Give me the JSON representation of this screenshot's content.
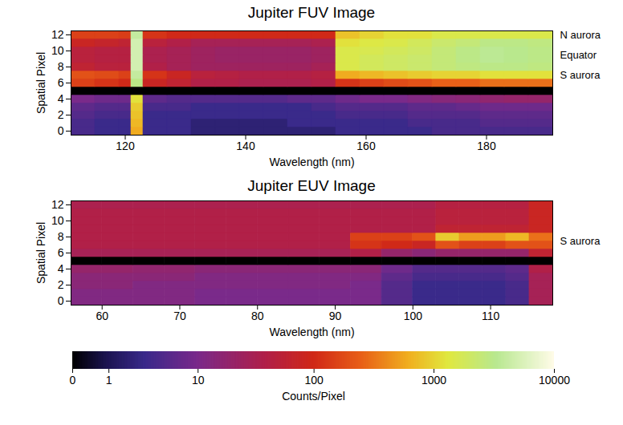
{
  "chart_data": [
    {
      "type": "heatmap",
      "title": "Jupiter FUV Image",
      "xlabel": "Wavelength (nm)",
      "ylabel": "Spatial Pixel",
      "xlim": [
        111,
        191
      ],
      "ylim": [
        -0.5,
        12.5
      ],
      "xticks": [
        120,
        140,
        160,
        180
      ],
      "yticks": [
        0,
        2,
        4,
        6,
        8,
        10,
        12
      ],
      "x_bins": [
        111,
        115,
        119,
        121,
        123,
        127,
        131,
        135,
        139,
        143,
        147,
        151,
        155,
        159,
        163,
        167,
        171,
        175,
        179,
        183,
        187,
        191
      ],
      "y_bins": [
        -0.5,
        0.5,
        1.5,
        2.5,
        3.5,
        4.5,
        5.5,
        6.5,
        7.5,
        8.5,
        9.5,
        10.5,
        11.5,
        12.5
      ],
      "cells": [
        [
          4,
          3,
          3,
          600,
          3,
          3,
          2,
          2,
          2,
          2,
          2,
          2,
          3,
          3,
          3,
          3,
          4,
          4,
          4,
          4,
          4
        ],
        [
          4,
          3,
          3,
          700,
          3,
          3,
          2,
          2,
          2,
          2,
          3,
          3,
          3,
          3,
          3,
          4,
          4,
          4,
          5,
          5,
          5
        ],
        [
          5,
          4,
          4,
          800,
          3,
          3,
          3,
          3,
          3,
          3,
          3,
          3,
          4,
          4,
          4,
          5,
          5,
          5,
          6,
          6,
          6
        ],
        [
          6,
          5,
          5,
          900,
          4,
          4,
          3,
          3,
          3,
          3,
          3,
          4,
          5,
          5,
          5,
          6,
          6,
          7,
          8,
          8,
          8
        ],
        [
          10,
          8,
          8,
          1200,
          6,
          5,
          5,
          5,
          5,
          5,
          6,
          6,
          8,
          10,
          10,
          12,
          14,
          15,
          18,
          20,
          20
        ],
        [
          0,
          0,
          0,
          0,
          0,
          0,
          0,
          0,
          0,
          0,
          0,
          0,
          0,
          0,
          0,
          0,
          0,
          0,
          0,
          0,
          0
        ],
        [
          150,
          120,
          100,
          3000,
          80,
          60,
          40,
          40,
          35,
          35,
          35,
          40,
          120,
          150,
          180,
          200,
          250,
          250,
          300,
          300,
          300
        ],
        [
          200,
          180,
          150,
          4000,
          120,
          80,
          50,
          45,
          40,
          40,
          40,
          45,
          600,
          700,
          800,
          900,
          1000,
          1000,
          1200,
          1200,
          1200
        ],
        [
          60,
          50,
          50,
          5000,
          40,
          30,
          25,
          25,
          25,
          25,
          25,
          30,
          1500,
          1800,
          2000,
          2200,
          2500,
          2800,
          3000,
          3000,
          2800
        ],
        [
          50,
          45,
          45,
          5000,
          35,
          30,
          25,
          22,
          22,
          22,
          22,
          25,
          1500,
          1800,
          2000,
          2200,
          2500,
          3000,
          3500,
          3200,
          3000
        ],
        [
          50,
          45,
          45,
          5000,
          35,
          30,
          25,
          22,
          22,
          22,
          22,
          25,
          1500,
          1600,
          1800,
          2000,
          2500,
          3000,
          3500,
          3200,
          3000
        ],
        [
          80,
          70,
          60,
          5000,
          50,
          40,
          30,
          30,
          30,
          30,
          30,
          35,
          1200,
          1400,
          1500,
          1800,
          2200,
          2500,
          3000,
          3000,
          2800
        ],
        [
          150,
          150,
          140,
          4000,
          120,
          100,
          100,
          100,
          100,
          100,
          100,
          100,
          800,
          1000,
          1200,
          1200,
          1500,
          1500,
          1500,
          1500,
          1500
        ]
      ],
      "annotations": [
        {
          "text": "N aurora",
          "y": 12
        },
        {
          "text": "Equator",
          "y": 9.5
        },
        {
          "text": "S aurora",
          "y": 7
        }
      ]
    },
    {
      "type": "heatmap",
      "title": "Jupiter EUV Image",
      "xlabel": "Wavelength (nm)",
      "ylabel": "Spatial Pixel",
      "xlim": [
        56,
        118
      ],
      "ylim": [
        -0.5,
        12.5
      ],
      "xticks": [
        60,
        70,
        80,
        90,
        100,
        110
      ],
      "yticks": [
        0,
        2,
        4,
        6,
        8,
        10,
        12
      ],
      "x_bins": [
        56,
        60,
        64,
        68,
        72,
        76,
        80,
        84,
        88,
        92,
        96,
        100,
        103,
        106,
        109,
        112,
        115,
        118
      ],
      "y_bins": [
        -0.5,
        0.5,
        1.5,
        2.5,
        3.5,
        4.5,
        5.5,
        6.5,
        7.5,
        8.5,
        9.5,
        10.5,
        11.5,
        12.5
      ],
      "cells": [
        [
          12,
          12,
          12,
          12,
          10,
          10,
          10,
          10,
          10,
          10,
          5,
          3,
          3,
          3,
          3,
          4,
          30
        ],
        [
          12,
          12,
          12,
          12,
          10,
          10,
          10,
          10,
          10,
          10,
          5,
          3,
          3,
          3,
          3,
          4,
          30
        ],
        [
          15,
          15,
          12,
          12,
          12,
          12,
          12,
          12,
          12,
          10,
          5,
          3,
          3,
          3,
          3,
          4,
          30
        ],
        [
          15,
          15,
          15,
          15,
          12,
          12,
          12,
          12,
          12,
          12,
          6,
          4,
          4,
          4,
          4,
          5,
          30
        ],
        [
          20,
          20,
          18,
          18,
          15,
          15,
          15,
          15,
          15,
          15,
          8,
          5,
          5,
          5,
          5,
          6,
          40
        ],
        [
          0,
          0,
          0,
          0,
          0,
          0,
          0,
          0,
          0,
          0,
          0,
          0,
          0,
          0,
          0,
          0,
          0
        ],
        [
          30,
          30,
          30,
          30,
          30,
          30,
          30,
          30,
          30,
          40,
          20,
          15,
          20,
          20,
          20,
          20,
          60
        ],
        [
          40,
          40,
          40,
          40,
          40,
          40,
          40,
          40,
          40,
          120,
          100,
          80,
          200,
          150,
          150,
          200,
          200
        ],
        [
          40,
          40,
          40,
          40,
          40,
          40,
          40,
          40,
          40,
          150,
          150,
          200,
          900,
          500,
          500,
          700,
          300
        ],
        [
          40,
          40,
          40,
          40,
          40,
          40,
          40,
          40,
          40,
          40,
          40,
          40,
          60,
          60,
          60,
          60,
          80
        ],
        [
          40,
          40,
          40,
          40,
          40,
          40,
          40,
          40,
          40,
          40,
          40,
          40,
          50,
          50,
          50,
          50,
          80
        ],
        [
          40,
          40,
          40,
          40,
          40,
          40,
          40,
          40,
          40,
          40,
          40,
          40,
          50,
          50,
          50,
          50,
          80
        ],
        [
          35,
          35,
          35,
          35,
          35,
          35,
          35,
          35,
          35,
          35,
          35,
          35,
          45,
          45,
          45,
          45,
          80
        ]
      ],
      "annotations": [
        {
          "text": "S aurora",
          "y": 7.5
        }
      ]
    }
  ],
  "color_bar": {
    "label": "Counts/Pixel",
    "lim": [
      0,
      10000
    ],
    "ticks": [
      0,
      1,
      10,
      100,
      1000,
      10000
    ]
  }
}
